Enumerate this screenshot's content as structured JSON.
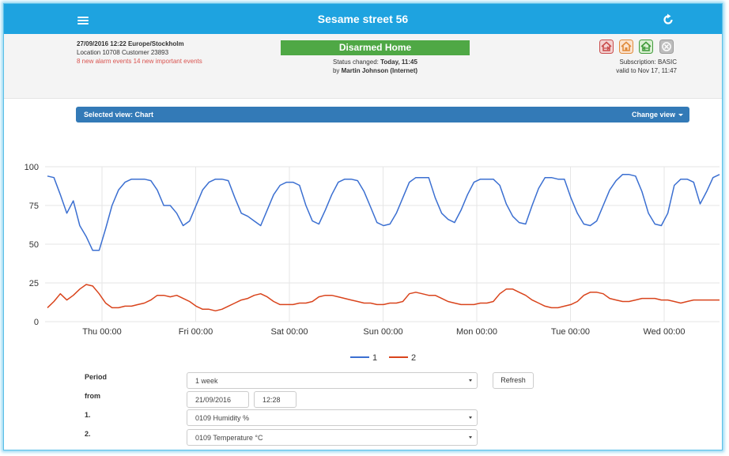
{
  "header": {
    "title": "Sesame street 56"
  },
  "info": {
    "datetime": "27/09/2016 12:22 Europe/Stockholm",
    "location": "Location 10708 Customer 23893",
    "alarms": "8 new alarm events 14 new important events",
    "status": "Disarmed Home",
    "status_prefix": "Status changed: ",
    "status_time": "Today, 11:45",
    "by_prefix": "by ",
    "by_user": "Martin Johnson (Internet)",
    "subscription": "Subscription: BASIC",
    "valid": "valid to Nov 17, 11:47"
  },
  "viewbar": {
    "label": "Selected view: Chart",
    "change": "Change view"
  },
  "colors": {
    "topbar": "#1ea3e0",
    "status": "#4fa845",
    "viewbar": "#337ab7",
    "series1": "#3b6fd1",
    "series2": "#d9441c"
  },
  "chart_data": {
    "type": "line",
    "x_labels": [
      "Thu 00:00",
      "Fri 00:00",
      "Sat 00:00",
      "Sun 00:00",
      "Mon 00:00",
      "Tue 00:00",
      "Wed 00:00"
    ],
    "ylim": [
      0,
      100
    ],
    "yticks": [
      0,
      25,
      50,
      75,
      100
    ],
    "legend_position": "bottom",
    "grid": true,
    "series": [
      {
        "name": "1",
        "values": [
          94,
          93,
          82,
          70,
          78,
          62,
          55,
          46,
          46,
          60,
          75,
          85,
          90,
          92,
          92,
          92,
          91,
          85,
          75,
          75,
          70,
          62,
          65,
          75,
          85,
          90,
          92,
          92,
          91,
          80,
          70,
          68,
          65,
          62,
          72,
          82,
          88,
          90,
          90,
          88,
          75,
          65,
          63,
          72,
          82,
          90,
          92,
          92,
          91,
          84,
          74,
          64,
          62,
          63,
          70,
          80,
          90,
          93,
          93,
          93,
          80,
          70,
          66,
          64,
          72,
          82,
          90,
          92,
          92,
          92,
          88,
          76,
          68,
          64,
          63,
          75,
          86,
          93,
          93,
          92,
          92,
          80,
          70,
          63,
          62,
          65,
          75,
          85,
          91,
          95,
          95,
          94,
          84,
          70,
          63,
          62,
          70,
          88,
          92,
          92,
          90,
          76,
          84,
          93,
          95
        ]
      },
      {
        "name": "2",
        "values": [
          9,
          13,
          18,
          14,
          17,
          21,
          24,
          23,
          18,
          12,
          9,
          9,
          10,
          10,
          11,
          12,
          14,
          17,
          17,
          16,
          17,
          15,
          13,
          10,
          8,
          8,
          7,
          8,
          10,
          12,
          14,
          15,
          17,
          18,
          16,
          13,
          11,
          11,
          11,
          12,
          12,
          13,
          16,
          17,
          17,
          16,
          15,
          14,
          13,
          12,
          12,
          11,
          11,
          12,
          12,
          13,
          18,
          19,
          18,
          17,
          17,
          15,
          13,
          12,
          11,
          11,
          11,
          12,
          12,
          13,
          18,
          21,
          21,
          19,
          17,
          14,
          12,
          10,
          9,
          9,
          10,
          11,
          13,
          17,
          19,
          19,
          18,
          15,
          14,
          13,
          13,
          14,
          15,
          15,
          15,
          14,
          14,
          13,
          12,
          13,
          14,
          14,
          14,
          14,
          14
        ]
      }
    ]
  },
  "form": {
    "period_label": "Period",
    "period_value": "1 week",
    "refresh": "Refresh",
    "from_label": "from",
    "from_date": "21/09/2016",
    "from_time": "12:28",
    "s1_label": "1.",
    "s1_value": "0109 Humidity %",
    "s2_label": "2.",
    "s2_value": "0109 Temperature °C"
  }
}
